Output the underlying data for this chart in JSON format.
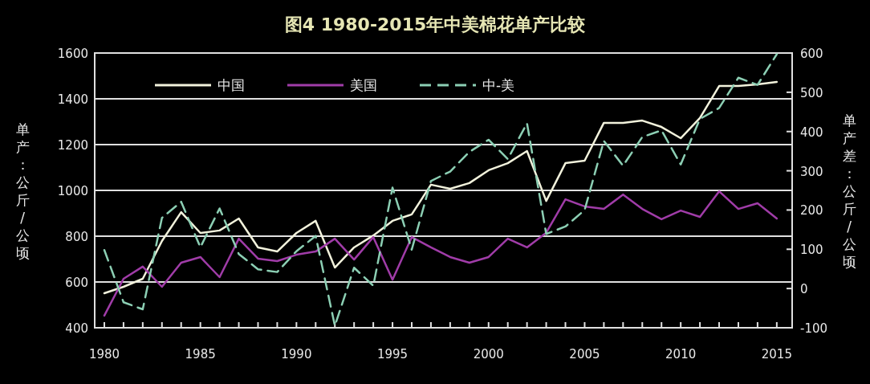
{
  "chart_data": {
    "type": "line",
    "title": "图4    1980-2015年中美棉花单产比较",
    "ylabel": "单产：公斤/公顷",
    "y2label": "单产差：公斤/公顷",
    "x": [
      1980,
      1981,
      1982,
      1983,
      1984,
      1985,
      1986,
      1987,
      1988,
      1989,
      1990,
      1991,
      1992,
      1993,
      1994,
      1995,
      1996,
      1997,
      1998,
      1999,
      2000,
      2001,
      2002,
      2003,
      2004,
      2005,
      2006,
      2007,
      2008,
      2009,
      2010,
      2011,
      2012,
      2013,
      2014,
      2015
    ],
    "series": [
      {
        "name": "中国",
        "color": "#f2f2dc",
        "line_style": "solid",
        "values": [
          551,
          579,
          614,
          779,
          905,
          814,
          825,
          877,
          751,
          733,
          814,
          867,
          663,
          751,
          803,
          867,
          895,
          1025,
          1007,
          1032,
          1088,
          1119,
          1172,
          954,
          1119,
          1130,
          1295,
          1295,
          1305,
          1277,
          1228,
          1316,
          1456,
          1456,
          1463,
          1474
        ]
      },
      {
        "name": "美国",
        "color": "#a03ca8",
        "line_style": "solid",
        "values": [
          453,
          614,
          667,
          579,
          684,
          709,
          621,
          789,
          702,
          691,
          719,
          733,
          789,
          698,
          796,
          610,
          796,
          751,
          709,
          684,
          709,
          789,
          751,
          815,
          961,
          930,
          919,
          982,
          919,
          874,
          912,
          884,
          996,
          919,
          944,
          877
        ]
      },
      {
        "name": "中-美",
        "color": "#8ccfb4",
        "line_style": "dashed",
        "axis": "y2",
        "values": [
          98,
          -35,
          -53,
          180,
          221,
          105,
          204,
          88,
          49,
          42,
          95,
          134,
          -95,
          53,
          7,
          257,
          99,
          274,
          298,
          348,
          379,
          330,
          421,
          139,
          158,
          200,
          376,
          313,
          386,
          403,
          316,
          432,
          460,
          537,
          519,
          597
        ]
      }
    ],
    "xlim": [
      1979.5,
      2015.8
    ],
    "xticks": [
      1980,
      {
        "value": 1981,
        "label": null
      },
      {
        "value": 1982,
        "label": null
      },
      {
        "value": 1983,
        "label": null
      },
      {
        "value": 1984,
        "label": null
      },
      1985,
      {
        "value": 1986,
        "label": null
      },
      {
        "value": 1987,
        "label": null
      },
      {
        "value": 1988,
        "label": null
      },
      {
        "value": 1989,
        "label": null
      },
      1990,
      {
        "value": 1991,
        "label": null
      },
      {
        "value": 1992,
        "label": null
      },
      {
        "value": 1993,
        "label": null
      },
      {
        "value": 1994,
        "label": null
      },
      1995,
      {
        "value": 1996,
        "label": null
      },
      {
        "value": 1997,
        "label": null
      },
      {
        "value": 1998,
        "label": null
      },
      {
        "value": 1999,
        "label": null
      },
      2000,
      {
        "value": 2001,
        "label": null
      },
      {
        "value": 2002,
        "label": null
      },
      {
        "value": 2003,
        "label": null
      },
      {
        "value": 2004,
        "label": null
      },
      2005,
      {
        "value": 2006,
        "label": null
      },
      {
        "value": 2007,
        "label": null
      },
      {
        "value": 2008,
        "label": null
      },
      {
        "value": 2009,
        "label": null
      },
      2010,
      {
        "value": 2011,
        "label": null
      },
      {
        "value": 2012,
        "label": null
      },
      {
        "value": 2013,
        "label": null
      },
      {
        "value": 2014,
        "label": null
      },
      2015
    ],
    "ylim": [
      400,
      1600
    ],
    "yticks": [
      400,
      600,
      800,
      1000,
      1200,
      1400,
      1600
    ],
    "y2lim": [
      -100,
      600
    ],
    "y2ticks": [
      -100,
      0,
      100,
      200,
      300,
      400,
      500,
      600
    ],
    "grid": "y",
    "legend": "top left"
  }
}
